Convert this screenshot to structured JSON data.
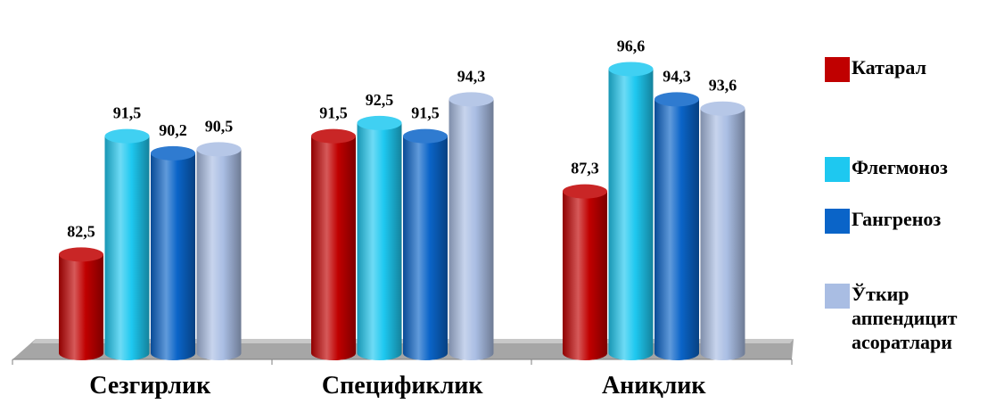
{
  "chart_data": {
    "type": "bar",
    "categories": [
      "Сезгирлик",
      "Спецификлик",
      "Аниқлик"
    ],
    "series": [
      {
        "name": "Катарал",
        "values": [
          82.5,
          91.5,
          87.3
        ],
        "labels": [
          "82,5",
          "91,5",
          "87,3"
        ],
        "color": "#c00000"
      },
      {
        "name": "Флегмоноз",
        "values": [
          91.5,
          92.5,
          96.6
        ],
        "labels": [
          "91,5",
          "92,5",
          "96,6"
        ],
        "color": "#1ec8f0"
      },
      {
        "name": "Гангреноз",
        "values": [
          90.2,
          91.5,
          94.3
        ],
        "labels": [
          "90,2",
          "91,5",
          "94,3"
        ],
        "color": "#0a64c8"
      },
      {
        "name": "Ўткир аппендицит асоратлари",
        "values": [
          90.5,
          94.3,
          93.6
        ],
        "labels": [
          "90,5",
          "94,3",
          "93,6"
        ],
        "color": "#a9bde3"
      }
    ],
    "legend_position": "right",
    "grid": false
  },
  "legend": [
    {
      "label": "Катарал",
      "color": "#c00000"
    },
    {
      "label": "Флегмоноз",
      "color": "#1ec8f0"
    },
    {
      "label": "Гангреноз",
      "color": "#0a64c8"
    },
    {
      "label": "Ўткир аппендицит асоратлари",
      "color": "#a9bde3"
    }
  ]
}
